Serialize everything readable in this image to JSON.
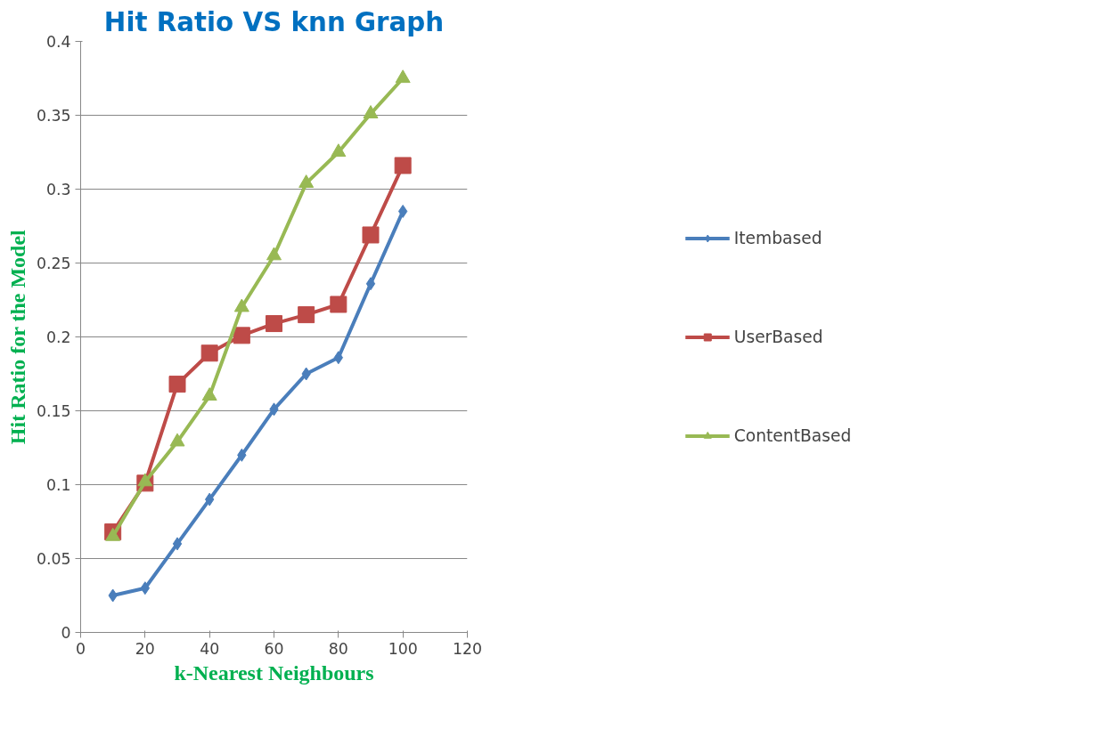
{
  "chart_data": {
    "type": "line",
    "title": "Hit Ratio VS knn Graph",
    "xlabel": "k-Nearest Neighbours",
    "ylabel": "Hit Ratio for the Model",
    "x": [
      10,
      20,
      30,
      40,
      50,
      60,
      70,
      80,
      90,
      100
    ],
    "xlim": [
      0,
      120
    ],
    "xticks": [
      0,
      20,
      40,
      60,
      80,
      100,
      120
    ],
    "ylim": [
      0,
      0.4
    ],
    "yticks": [
      0,
      0.05,
      0.1,
      0.15,
      0.2,
      0.25,
      0.3,
      0.35,
      0.4
    ],
    "grid": "y",
    "legend": "right",
    "series": [
      {
        "name": "Itembased",
        "color": "#4a7ebb",
        "marker": "diamond",
        "values": [
          0.025,
          0.03,
          0.06,
          0.09,
          0.12,
          0.151,
          0.175,
          0.186,
          0.236,
          0.285
        ]
      },
      {
        "name": "UserBased",
        "color": "#be4b48",
        "marker": "square",
        "values": [
          0.068,
          0.101,
          0.168,
          0.189,
          0.201,
          0.209,
          0.215,
          0.222,
          0.269,
          0.316
        ]
      },
      {
        "name": "ContentBased",
        "color": "#98b954",
        "marker": "triangle",
        "values": [
          0.065,
          0.102,
          0.129,
          0.16,
          0.22,
          0.255,
          0.304,
          0.325,
          0.351,
          0.375
        ]
      }
    ]
  }
}
